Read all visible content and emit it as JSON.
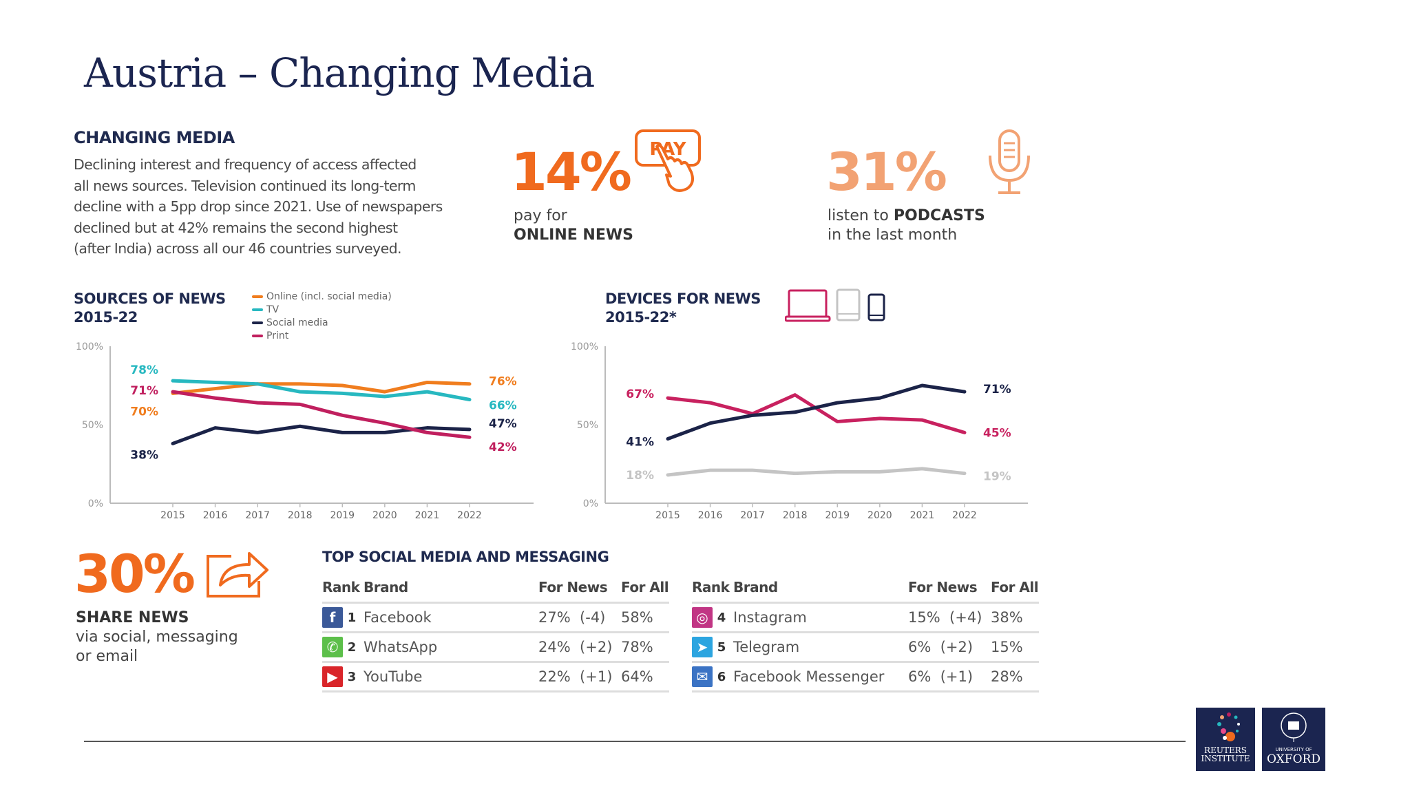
{
  "title": "Austria – Changing Media",
  "intro": {
    "heading": "CHANGING MEDIA",
    "lines": [
      "Declining interest and frequency of access affected",
      "all news sources. Television continued its long-term",
      "decline with a 5pp drop since 2021. Use of newspapers",
      "declined but at 42% remains the second highest",
      "(after India) across all our 46 countries surveyed."
    ]
  },
  "stats": {
    "pay": {
      "value": "14%",
      "line1": "pay for",
      "line2": "ONLINE NEWS",
      "icon": "pay-button-hand-icon",
      "icon_text": "PAY",
      "color": "#f06a1e"
    },
    "podcasts": {
      "value": "31%",
      "line1_pre": "listen to ",
      "line1_bold": "PODCASTS",
      "line2": "in the last month",
      "icon": "microphone-icon",
      "color": "#f2a273"
    },
    "share": {
      "value": "30%",
      "line1": "SHARE NEWS",
      "line2": "via social, messaging",
      "line3": "or email",
      "icon": "share-arrow-icon",
      "color": "#f06a1e"
    }
  },
  "chart_data": [
    {
      "type": "line",
      "title": "SOURCES OF NEWS",
      "subtitle": "2015-22",
      "x": [
        "2015",
        "2016",
        "2017",
        "2018",
        "2019",
        "2020",
        "2021",
        "2022"
      ],
      "yticks": [
        "100%",
        "50%",
        "0%"
      ],
      "ylim": [
        0,
        100
      ],
      "grid": false,
      "legend_placement": "top",
      "series": [
        {
          "name": "Online (incl. social media)",
          "color": "#f07d1e",
          "values": [
            70,
            73,
            76,
            76,
            75,
            71,
            77,
            76
          ],
          "start_label": "70%",
          "end_label": "76%"
        },
        {
          "name": "TV",
          "color": "#27b8c0",
          "values": [
            78,
            77,
            76,
            71,
            70,
            68,
            71,
            66
          ],
          "start_label": "78%",
          "end_label": "66%"
        },
        {
          "name": "Social media",
          "color": "#1b2348",
          "values": [
            38,
            48,
            45,
            49,
            45,
            45,
            48,
            47
          ],
          "start_label": "38%",
          "end_label": "47%"
        },
        {
          "name": "Print",
          "color": "#c01f5e",
          "values": [
            71,
            67,
            64,
            63,
            56,
            51,
            45,
            42
          ],
          "start_label": "71%",
          "end_label": "42%"
        }
      ]
    },
    {
      "type": "line",
      "title": "DEVICES FOR NEWS",
      "subtitle": "2015-22*",
      "x": [
        "2015",
        "2016",
        "2017",
        "2018",
        "2019",
        "2020",
        "2021",
        "2022"
      ],
      "yticks": [
        "100%",
        "50%",
        "0%"
      ],
      "ylim": [
        0,
        100
      ],
      "grid": false,
      "legend_icons": [
        "laptop-icon",
        "tablet-icon",
        "smartphone-icon"
      ],
      "series": [
        {
          "icon": "laptop-icon",
          "color": "#c8215f",
          "values": [
            67,
            64,
            57,
            69,
            52,
            54,
            53,
            45
          ],
          "start_label": "67%",
          "end_label": "45%"
        },
        {
          "icon": "smartphone-icon",
          "color": "#1b2348",
          "values": [
            41,
            51,
            56,
            58,
            64,
            67,
            75,
            71
          ],
          "start_label": "41%",
          "end_label": "71%"
        },
        {
          "icon": "tablet-icon",
          "color": "#c4c4c4",
          "values": [
            18,
            21,
            21,
            19,
            20,
            20,
            22,
            19
          ],
          "start_label": "18%",
          "end_label": "19%"
        }
      ]
    }
  ],
  "social": {
    "heading": "TOP SOCIAL MEDIA AND MESSAGING",
    "columns": [
      "Rank",
      "Brand",
      "For News",
      "For All"
    ],
    "rows": [
      {
        "rank": "1",
        "brand": "Facebook",
        "news": "27%",
        "change": "(-4)",
        "all": "58%",
        "icon": "facebook-icon",
        "color": "#3b5998"
      },
      {
        "rank": "2",
        "brand": "WhatsApp",
        "news": "24%",
        "change": "(+2)",
        "all": "78%",
        "icon": "whatsapp-icon",
        "color": "#5cbf4a"
      },
      {
        "rank": "3",
        "brand": "YouTube",
        "news": "22%",
        "change": "(+1)",
        "all": "64%",
        "icon": "youtube-icon",
        "color": "#d9252a"
      },
      {
        "rank": "4",
        "brand": "Instagram",
        "news": "15%",
        "change": "(+4)",
        "all": "38%",
        "icon": "instagram-icon",
        "color": "#c13584"
      },
      {
        "rank": "5",
        "brand": "Telegram",
        "news": "6%",
        "change": "(+2)",
        "all": "15%",
        "icon": "telegram-icon",
        "color": "#2ca5e0"
      },
      {
        "rank": "6",
        "brand": "Facebook Messenger",
        "news": "6%",
        "change": "(+1)",
        "all": "28%",
        "icon": "messenger-icon",
        "color": "#3b73c4"
      }
    ]
  },
  "logos": {
    "reuters": [
      "REUTERS",
      "INSTITUTE"
    ],
    "oxford": [
      "UNIVERSITY OF",
      "OXFORD"
    ]
  }
}
